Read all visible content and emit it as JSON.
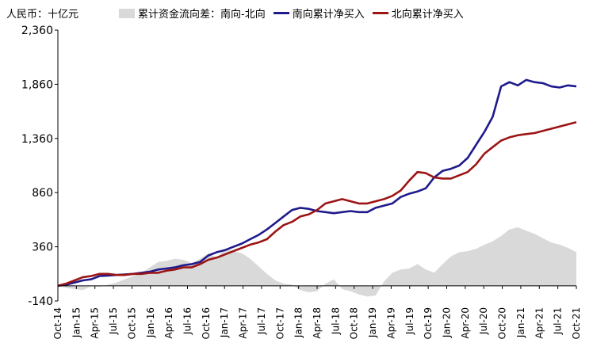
{
  "unit_label": "人民币：十亿元",
  "colors": {
    "area": "#d9d9d9",
    "south": "#1f1a8c",
    "north": "#9c1414",
    "axis": "#000000"
  },
  "chart_data": {
    "type": "line",
    "ylim": [
      -140,
      2360
    ],
    "yticks": [
      "2,360",
      "1,860",
      "1,360",
      "860",
      "360",
      "-140"
    ],
    "ytick_values": [
      2360,
      1860,
      1360,
      860,
      360,
      -140
    ],
    "x_tick_labels": [
      "Oct-14",
      "Jan-15",
      "Apr-15",
      "Jul-15",
      "Oct-15",
      "Jan-16",
      "Apr-16",
      "Jul-16",
      "Oct-16",
      "Jan-17",
      "Apr-17",
      "Jul-17",
      "Oct-17",
      "Jan-18",
      "Apr-18",
      "Jul-18",
      "Oct-18",
      "Jan-19",
      "Apr-19",
      "Jul-19",
      "Oct-19",
      "Jan-20",
      "Apr-20",
      "Jul-20",
      "Oct-20",
      "Jan-21",
      "Apr-21",
      "Jul-21",
      "Oct-21"
    ],
    "series": [
      {
        "name": "累计资金流向差：南向-北向",
        "kind": "area",
        "color": "#d9d9d9",
        "values": [
          0,
          -20,
          -30,
          -40,
          -5,
          -10,
          10,
          30,
          60,
          90,
          120,
          170,
          220,
          230,
          250,
          240,
          210,
          250,
          300,
          260,
          340,
          320,
          300,
          250,
          180,
          110,
          50,
          20,
          10,
          -40,
          -60,
          -50,
          20,
          60,
          -30,
          -50,
          -80,
          -100,
          -90,
          40,
          120,
          150,
          160,
          200,
          150,
          120,
          200,
          270,
          310,
          320,
          340,
          380,
          410,
          460,
          520,
          540,
          510,
          480,
          440,
          400,
          380,
          350,
          310
        ]
      },
      {
        "name": "南向累计净买入",
        "kind": "line",
        "color": "#1f1a8c",
        "values": [
          0,
          10,
          30,
          50,
          60,
          90,
          95,
          100,
          105,
          110,
          120,
          130,
          150,
          160,
          170,
          190,
          200,
          220,
          280,
          310,
          330,
          360,
          390,
          430,
          470,
          520,
          580,
          640,
          700,
          720,
          710,
          690,
          680,
          670,
          680,
          690,
          680,
          680,
          720,
          740,
          760,
          820,
          850,
          870,
          900,
          1000,
          1060,
          1080,
          1110,
          1180,
          1300,
          1420,
          1560,
          1840,
          1880,
          1850,
          1900,
          1880,
          1870,
          1840,
          1830,
          1850,
          1840
        ]
      },
      {
        "name": "北向累计净买入",
        "kind": "line",
        "color": "#9c1414",
        "values": [
          0,
          20,
          50,
          80,
          90,
          110,
          110,
          100,
          100,
          110,
          110,
          120,
          120,
          140,
          150,
          170,
          170,
          200,
          240,
          260,
          290,
          320,
          350,
          380,
          400,
          430,
          500,
          560,
          590,
          640,
          660,
          700,
          760,
          780,
          800,
          780,
          760,
          760,
          780,
          800,
          830,
          880,
          970,
          1050,
          1040,
          1000,
          990,
          990,
          1020,
          1050,
          1120,
          1220,
          1280,
          1340,
          1370,
          1390,
          1400,
          1410,
          1430,
          1450,
          1470,
          1490,
          1510
        ]
      }
    ]
  }
}
